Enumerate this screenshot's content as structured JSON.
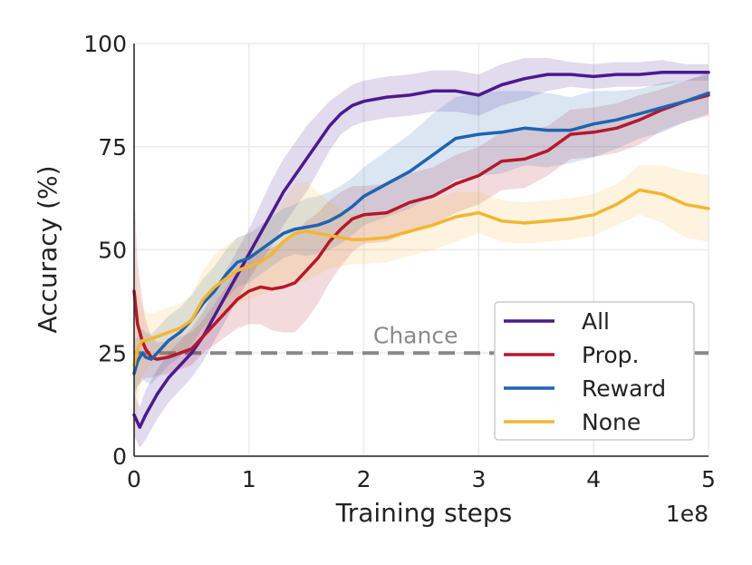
{
  "chart_data": {
    "type": "line",
    "title": "",
    "xlabel": "Training steps",
    "ylabel": "Accuracy (%)",
    "x_multiplier_label": "1e8",
    "xlim": [
      0,
      5
    ],
    "ylim": [
      0,
      100
    ],
    "xticks": [
      0,
      1,
      2,
      3,
      4,
      5
    ],
    "yticks": [
      0,
      25,
      50,
      75,
      100
    ],
    "grid": true,
    "legend_position": "bottom-right",
    "chance": {
      "value": 25,
      "label": "Chance",
      "color": "#888888"
    },
    "series": [
      {
        "name": "All",
        "color": "#4b1a8c",
        "x": [
          0.0,
          0.05,
          0.1,
          0.2,
          0.3,
          0.4,
          0.5,
          0.6,
          0.7,
          0.8,
          0.9,
          1.0,
          1.1,
          1.2,
          1.3,
          1.4,
          1.5,
          1.6,
          1.7,
          1.8,
          1.9,
          2.0,
          2.1,
          2.2,
          2.4,
          2.6,
          2.8,
          3.0,
          3.2,
          3.4,
          3.6,
          3.8,
          4.0,
          4.2,
          4.4,
          4.6,
          4.8,
          5.0
        ],
        "values": [
          10,
          7,
          10,
          15,
          19,
          22,
          25,
          29,
          34,
          39,
          44,
          49,
          54,
          59,
          64,
          68,
          72,
          76,
          80,
          83,
          85,
          86,
          86.5,
          87,
          87.5,
          88.5,
          88.5,
          87.5,
          90,
          91.5,
          92.5,
          92.5,
          92,
          92.5,
          92.5,
          93,
          93,
          93
        ],
        "band": [
          5,
          5,
          6,
          6,
          6,
          6,
          6,
          6,
          6,
          6,
          6,
          6,
          7,
          8,
          8,
          8,
          8,
          7,
          6,
          5,
          5,
          5,
          5,
          5,
          5,
          5,
          5,
          5,
          5,
          5,
          4,
          3,
          3,
          3,
          3,
          3,
          2,
          2
        ]
      },
      {
        "name": "Prop.",
        "color": "#b5182b",
        "x": [
          0.0,
          0.03,
          0.07,
          0.1,
          0.15,
          0.2,
          0.3,
          0.4,
          0.5,
          0.6,
          0.7,
          0.8,
          0.9,
          1.0,
          1.1,
          1.2,
          1.3,
          1.4,
          1.5,
          1.6,
          1.7,
          1.8,
          1.9,
          2.0,
          2.2,
          2.4,
          2.6,
          2.8,
          3.0,
          3.2,
          3.4,
          3.6,
          3.8,
          4.0,
          4.2,
          4.4,
          4.6,
          4.8,
          5.0
        ],
        "values": [
          40,
          32,
          28,
          26,
          24,
          23.5,
          24,
          25,
          26,
          29,
          32,
          35,
          38,
          40,
          41,
          40.5,
          41,
          42,
          45,
          48,
          52,
          55,
          57.5,
          58.5,
          59,
          61.5,
          63,
          66,
          68,
          71.5,
          72,
          74,
          78,
          78.5,
          79.5,
          81.5,
          84,
          86,
          87.5
        ],
        "band": [
          25,
          15,
          10,
          7,
          5,
          4,
          4,
          4,
          4,
          4,
          5,
          6,
          7,
          8,
          9,
          10,
          11,
          12,
          12,
          11,
          10,
          9,
          8,
          7,
          7,
          7,
          7,
          7,
          7,
          7,
          7,
          6,
          6,
          6,
          6,
          6,
          5,
          5,
          5
        ]
      },
      {
        "name": "Reward",
        "color": "#1f63b1",
        "x": [
          0.0,
          0.03,
          0.07,
          0.1,
          0.15,
          0.2,
          0.3,
          0.4,
          0.5,
          0.6,
          0.7,
          0.8,
          0.9,
          1.0,
          1.1,
          1.2,
          1.3,
          1.4,
          1.5,
          1.6,
          1.7,
          1.8,
          1.9,
          2.0,
          2.2,
          2.4,
          2.6,
          2.8,
          3.0,
          3.2,
          3.4,
          3.6,
          3.8,
          4.0,
          4.2,
          4.4,
          4.6,
          4.8,
          5.0
        ],
        "values": [
          20,
          23,
          25,
          24,
          23.5,
          25,
          28,
          30,
          33,
          37,
          40,
          44,
          47,
          48,
          50,
          52,
          54,
          55,
          55.5,
          56,
          57,
          58.5,
          60.5,
          63,
          66,
          69,
          73,
          77,
          78,
          78.5,
          79.5,
          79,
          79,
          80.5,
          81.5,
          83,
          84.5,
          86,
          88
        ],
        "band": [
          8,
          6,
          6,
          6,
          6,
          6,
          6,
          6,
          6,
          6,
          6,
          6,
          6,
          6,
          6,
          6,
          6,
          6,
          7,
          7,
          7,
          7,
          7,
          7,
          8,
          9,
          10,
          10,
          10,
          10,
          9,
          9,
          8,
          8,
          7,
          6,
          6,
          5,
          5
        ]
      },
      {
        "name": "None",
        "color": "#f2b633",
        "x": [
          0.0,
          0.03,
          0.07,
          0.1,
          0.15,
          0.2,
          0.3,
          0.4,
          0.5,
          0.6,
          0.7,
          0.8,
          0.9,
          1.0,
          1.1,
          1.2,
          1.3,
          1.4,
          1.5,
          1.6,
          1.7,
          1.8,
          1.9,
          2.0,
          2.2,
          2.4,
          2.6,
          2.8,
          3.0,
          3.2,
          3.4,
          3.6,
          3.8,
          4.0,
          4.2,
          4.4,
          4.6,
          4.8,
          5.0
        ],
        "values": [
          22,
          26,
          28,
          28,
          28.5,
          29,
          30,
          31,
          33,
          38,
          41,
          43,
          45,
          46,
          47,
          49,
          52,
          54,
          54.5,
          54,
          53.5,
          53,
          52.5,
          52.5,
          53,
          54.5,
          56,
          58,
          59,
          57,
          56.5,
          57,
          57.5,
          58.5,
          61,
          64.5,
          63.5,
          61,
          60
        ],
        "band": [
          30,
          14,
          8,
          7,
          6,
          6,
          6,
          6,
          6,
          7,
          8,
          8,
          8,
          8,
          8,
          9,
          10,
          12,
          12,
          10,
          8,
          7,
          6,
          6,
          6,
          6,
          6,
          6,
          5,
          5,
          5,
          5,
          5,
          5,
          5,
          6,
          7,
          8,
          8
        ]
      }
    ]
  }
}
